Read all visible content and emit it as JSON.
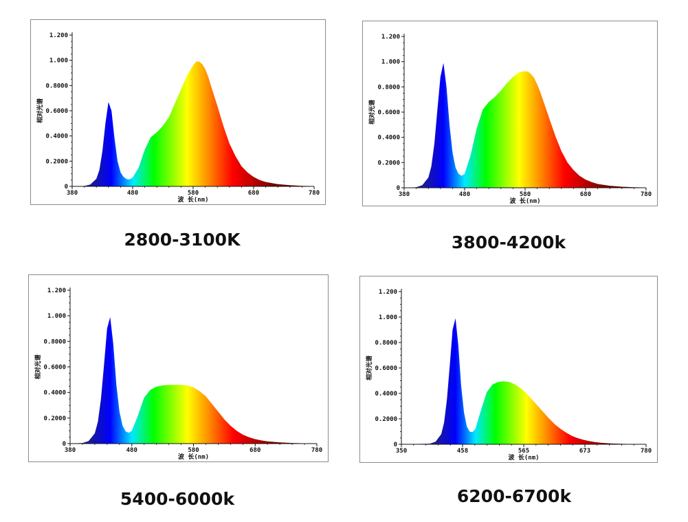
{
  "chart_data": [
    {
      "type": "area",
      "title": "",
      "caption": "2800-3100K",
      "xlabel": "波 长(nm)",
      "ylabel": "相对光谱",
      "xlim": [
        380,
        780
      ],
      "ylim": [
        0,
        1.2
      ],
      "x_ticks": [
        "380",
        "480",
        "580",
        "680",
        "780"
      ],
      "y_ticks": [
        "0",
        "0.2000",
        "0.4000",
        "0.6000",
        "0.8000",
        "1.000",
        "1.200"
      ],
      "series": [
        {
          "x": [
            380,
            400,
            410,
            420,
            425,
            430,
            435,
            440,
            445,
            450,
            455,
            460,
            465,
            470,
            475,
            480,
            490,
            500,
            510,
            520,
            530,
            540,
            550,
            560,
            570,
            580,
            585,
            590,
            595,
            600,
            605,
            610,
            620,
            630,
            640,
            650,
            660,
            670,
            680,
            690,
            700,
            720,
            740,
            760,
            780
          ],
          "values": [
            0,
            0.003,
            0.015,
            0.06,
            0.13,
            0.28,
            0.5,
            0.67,
            0.6,
            0.38,
            0.2,
            0.11,
            0.075,
            0.058,
            0.055,
            0.07,
            0.15,
            0.29,
            0.39,
            0.43,
            0.48,
            0.55,
            0.66,
            0.77,
            0.88,
            0.96,
            0.99,
            0.99,
            0.97,
            0.93,
            0.87,
            0.79,
            0.64,
            0.48,
            0.34,
            0.24,
            0.16,
            0.11,
            0.075,
            0.05,
            0.035,
            0.018,
            0.009,
            0.004,
            0.002
          ]
        }
      ]
    },
    {
      "type": "area",
      "title": "",
      "caption": "3800-4200k",
      "xlabel": "波 长(nm)",
      "ylabel": "相对光谱",
      "xlim": [
        380,
        780
      ],
      "ylim": [
        0,
        1.2
      ],
      "x_ticks": [
        "380",
        "480",
        "580",
        "680",
        "780"
      ],
      "y_ticks": [
        "0",
        "0.2000",
        "0.4000",
        "0.6000",
        "0.8000",
        "1.000",
        "1.200"
      ],
      "series": [
        {
          "x": [
            380,
            400,
            410,
            420,
            425,
            430,
            435,
            440,
            445,
            450,
            455,
            460,
            465,
            470,
            475,
            480,
            490,
            500,
            510,
            520,
            530,
            540,
            550,
            560,
            570,
            580,
            585,
            590,
            595,
            600,
            605,
            610,
            620,
            630,
            640,
            650,
            660,
            670,
            680,
            690,
            700,
            720,
            740,
            760,
            780
          ],
          "values": [
            0,
            0.004,
            0.02,
            0.08,
            0.17,
            0.35,
            0.62,
            0.88,
            0.99,
            0.8,
            0.5,
            0.28,
            0.16,
            0.11,
            0.095,
            0.11,
            0.26,
            0.47,
            0.62,
            0.68,
            0.72,
            0.77,
            0.83,
            0.88,
            0.915,
            0.925,
            0.92,
            0.9,
            0.87,
            0.82,
            0.76,
            0.69,
            0.55,
            0.41,
            0.29,
            0.2,
            0.14,
            0.095,
            0.065,
            0.045,
            0.03,
            0.016,
            0.008,
            0.004,
            0.002
          ]
        }
      ]
    },
    {
      "type": "area",
      "title": "",
      "caption": "5400-6000k",
      "xlabel": "波 长(nm)",
      "ylabel": "相对光谱",
      "xlim": [
        380,
        780
      ],
      "ylim": [
        0,
        1.2
      ],
      "x_ticks": [
        "380",
        "480",
        "580",
        "680",
        "780"
      ],
      "y_ticks": [
        "0",
        "0.2000",
        "0.4000",
        "0.6000",
        "0.8000",
        "1.000",
        "1.200"
      ],
      "series": [
        {
          "x": [
            380,
            400,
            410,
            420,
            425,
            430,
            435,
            440,
            445,
            450,
            455,
            460,
            465,
            470,
            475,
            480,
            490,
            500,
            510,
            520,
            530,
            540,
            550,
            560,
            570,
            580,
            590,
            600,
            610,
            620,
            630,
            640,
            650,
            660,
            670,
            680,
            690,
            700,
            720,
            740,
            760,
            780
          ],
          "values": [
            0,
            0.005,
            0.02,
            0.08,
            0.17,
            0.35,
            0.62,
            0.9,
            0.99,
            0.78,
            0.46,
            0.25,
            0.14,
            0.095,
            0.085,
            0.1,
            0.22,
            0.36,
            0.42,
            0.445,
            0.455,
            0.46,
            0.46,
            0.46,
            0.455,
            0.44,
            0.41,
            0.37,
            0.31,
            0.25,
            0.19,
            0.14,
            0.1,
            0.07,
            0.05,
            0.035,
            0.025,
            0.018,
            0.009,
            0.005,
            0.002,
            0.001
          ]
        }
      ]
    },
    {
      "type": "area",
      "title": "",
      "caption": "6200-6700k",
      "xlabel": "波 长(nm)",
      "ylabel": "相对光谱",
      "xlim": [
        350,
        780
      ],
      "ylim": [
        0,
        1.2
      ],
      "x_ticks": [
        "350",
        "458",
        "565",
        "673",
        "780"
      ],
      "y_ticks": [
        "0",
        "0.2000",
        "0.4000",
        "0.6000",
        "0.8000",
        "1.000",
        "1.200"
      ],
      "series": [
        {
          "x": [
            350,
            400,
            410,
            420,
            425,
            430,
            435,
            440,
            445,
            450,
            455,
            460,
            465,
            470,
            475,
            480,
            490,
            500,
            510,
            520,
            530,
            540,
            550,
            560,
            570,
            580,
            590,
            600,
            610,
            620,
            630,
            640,
            650,
            660,
            670,
            680,
            690,
            700,
            720,
            740,
            760,
            780
          ],
          "values": [
            0,
            0.005,
            0.02,
            0.08,
            0.17,
            0.35,
            0.62,
            0.9,
            0.99,
            0.78,
            0.46,
            0.25,
            0.14,
            0.1,
            0.095,
            0.12,
            0.27,
            0.41,
            0.47,
            0.49,
            0.495,
            0.49,
            0.47,
            0.44,
            0.4,
            0.35,
            0.3,
            0.25,
            0.2,
            0.155,
            0.12,
            0.09,
            0.065,
            0.048,
            0.035,
            0.025,
            0.018,
            0.012,
            0.006,
            0.003,
            0.001,
            0.0
          ]
        }
      ]
    }
  ],
  "palette": {
    "spectrum_stops": [
      "#1c1c8e",
      "#0000ff",
      "#00e8ff",
      "#00ff00",
      "#ffff00",
      "#ff8c00",
      "#ff0000",
      "#6a0000"
    ],
    "text": "#111111",
    "frame": "#8a8a8a"
  }
}
